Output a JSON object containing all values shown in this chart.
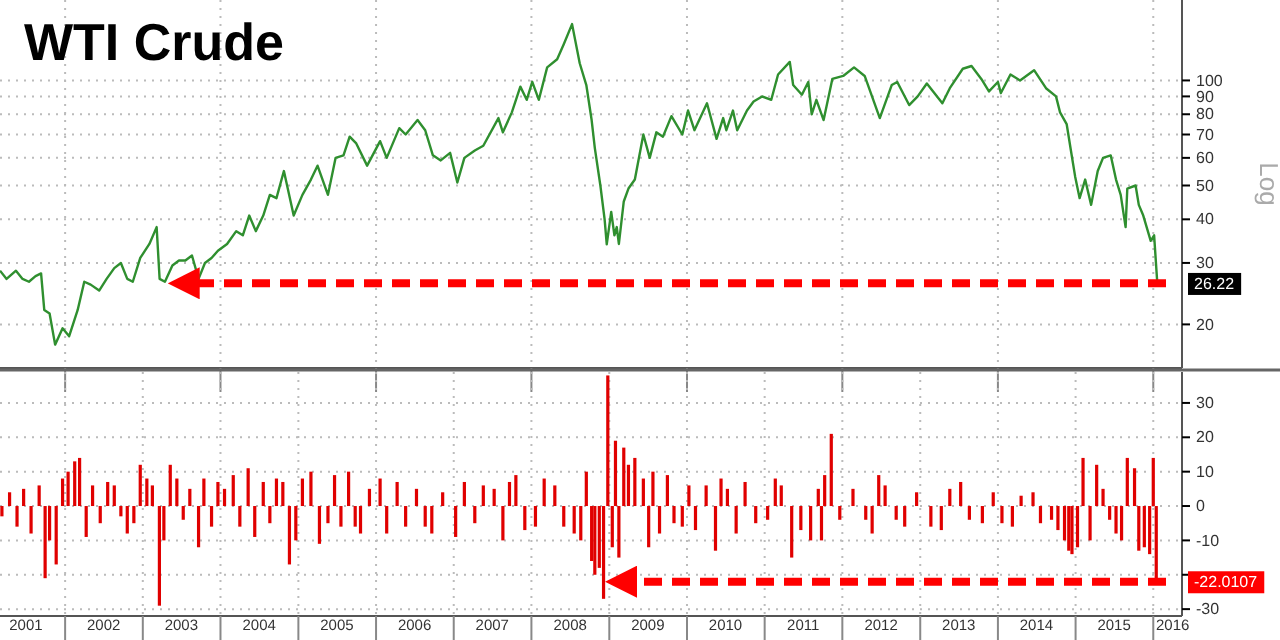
{
  "chart_data": [
    {
      "type": "line",
      "title": "WTI Crude",
      "ylabel": "Log",
      "log": true,
      "grid": true,
      "tick_labels": "y",
      "xlim": [
        "2001-03-01",
        "2016-05-15"
      ],
      "xticks": [
        {
          "value": "2002-01-01",
          "label": null
        },
        {
          "value": "2004-01-01",
          "label": null
        },
        {
          "value": "2006-01-01",
          "label": null
        },
        {
          "value": "2008-01-01",
          "label": null
        },
        {
          "value": "2010-01-01",
          "label": null
        },
        {
          "value": "2012-01-01",
          "label": null
        },
        {
          "value": "2014-01-01",
          "label": null
        },
        {
          "value": "2016-01-01",
          "label": null
        }
      ],
      "ylim": [
        15,
        170
      ],
      "yticks": [
        20,
        30,
        40,
        50,
        60,
        70,
        80,
        90,
        100
      ],
      "ref_lines": [
        {
          "axis": "y",
          "value": 26.22,
          "label": "26.22",
          "color": "#ff0000",
          "line_style": "dashed"
        }
      ],
      "series": [
        {
          "color": "#2f8f2f",
          "x": [
            "2001-03-01",
            "2001-04-01",
            "2001-05-15",
            "2001-06-15",
            "2001-07-15",
            "2001-08-15",
            "2001-09-10",
            "2001-09-25",
            "2001-10-20",
            "2001-11-15",
            "2001-12-20",
            "2002-01-20",
            "2002-03-01",
            "2002-04-01",
            "2002-05-01",
            "2002-06-10",
            "2002-07-15",
            "2002-08-20",
            "2002-09-20",
            "2002-10-20",
            "2002-11-15",
            "2002-12-20",
            "2003-02-01",
            "2003-03-07",
            "2003-03-21",
            "2003-04-15",
            "2003-05-20",
            "2003-06-20",
            "2003-07-20",
            "2003-08-20",
            "2003-09-20",
            "2003-10-20",
            "2003-11-20",
            "2003-12-20",
            "2004-02-01",
            "2004-03-15",
            "2004-04-15",
            "2004-05-15",
            "2004-06-15",
            "2004-07-20",
            "2004-08-20",
            "2004-09-20",
            "2004-10-25",
            "2004-12-10",
            "2005-01-20",
            "2005-03-01",
            "2005-04-01",
            "2005-05-20",
            "2005-06-25",
            "2005-08-01",
            "2005-08-30",
            "2005-09-30",
            "2005-11-20",
            "2006-01-20",
            "2006-02-20",
            "2006-04-20",
            "2006-05-20",
            "2006-07-15",
            "2006-08-20",
            "2006-09-25",
            "2006-11-01",
            "2006-12-15",
            "2007-01-18",
            "2007-02-20",
            "2007-04-10",
            "2007-05-20",
            "2007-07-30",
            "2007-08-20",
            "2007-10-01",
            "2007-11-10",
            "2007-12-10",
            "2008-01-05",
            "2008-02-05",
            "2008-03-15",
            "2008-05-01",
            "2008-06-01",
            "2008-07-10",
            "2008-08-15",
            "2008-09-15",
            "2008-10-10",
            "2008-10-25",
            "2008-11-20",
            "2008-12-10",
            "2008-12-20",
            "2009-01-10",
            "2009-01-25",
            "2009-02-05",
            "2009-02-15",
            "2009-03-10",
            "2009-04-01",
            "2009-05-01",
            "2009-06-10",
            "2009-07-10",
            "2009-08-10",
            "2009-09-10",
            "2009-10-20",
            "2009-12-10",
            "2010-01-06",
            "2010-02-05",
            "2010-04-05",
            "2010-05-20",
            "2010-06-20",
            "2010-07-05",
            "2010-08-05",
            "2010-08-25",
            "2010-10-10",
            "2010-11-10",
            "2010-12-20",
            "2011-02-01",
            "2011-03-05",
            "2011-04-29",
            "2011-05-15",
            "2011-06-25",
            "2011-07-25",
            "2011-08-10",
            "2011-09-01",
            "2011-10-05",
            "2011-11-15",
            "2012-01-05",
            "2012-02-25",
            "2012-04-15",
            "2012-06-25",
            "2012-08-20",
            "2012-09-15",
            "2012-11-10",
            "2012-12-20",
            "2013-02-01",
            "2013-04-15",
            "2013-05-20",
            "2013-07-20",
            "2013-08-30",
            "2013-10-15",
            "2013-11-20",
            "2014-01-01",
            "2014-01-15",
            "2014-03-01",
            "2014-04-15",
            "2014-06-20",
            "2014-08-15",
            "2014-10-01",
            "2014-10-20",
            "2014-11-20",
            "2014-12-10",
            "2014-12-30",
            "2015-01-20",
            "2015-02-15",
            "2015-03-15",
            "2015-04-15",
            "2015-05-10",
            "2015-06-15",
            "2015-07-10",
            "2015-08-01",
            "2015-08-24",
            "2015-09-01",
            "2015-10-10",
            "2015-10-25",
            "2015-11-15",
            "2015-12-20",
            "2016-01-05",
            "2016-01-20"
          ],
          "values": [
            28.5,
            27,
            28.5,
            27,
            26.5,
            27.5,
            28,
            22,
            21.5,
            17.5,
            19.5,
            18.5,
            22,
            26.5,
            26,
            25,
            27,
            29,
            30,
            27,
            26.5,
            31,
            34,
            38,
            27,
            26.5,
            29.5,
            30.5,
            30.5,
            31.5,
            27,
            30,
            31,
            32.5,
            34,
            37,
            36,
            41,
            37,
            41,
            47,
            46,
            55,
            41,
            47,
            52,
            57,
            47,
            60,
            61,
            69,
            66,
            57,
            67,
            60,
            73,
            70,
            77,
            72,
            61,
            59,
            62,
            51,
            60,
            63,
            65,
            78,
            71,
            81,
            96,
            88,
            99,
            88,
            109,
            115,
            127,
            145,
            112,
            97,
            77,
            64,
            50,
            40,
            33.9,
            42,
            36,
            38,
            34,
            45,
            49,
            52,
            70,
            60,
            71,
            69,
            79,
            70,
            82,
            72,
            86,
            68,
            78,
            72,
            82,
            72,
            82,
            87,
            90,
            88,
            104,
            113,
            97,
            91,
            99,
            80,
            88,
            77,
            101,
            103,
            109,
            103,
            78,
            97,
            99,
            85,
            90,
            98,
            86,
            95,
            108,
            110,
            101,
            93,
            99,
            92,
            104,
            100,
            107,
            95,
            90,
            81,
            75,
            63,
            53,
            46,
            52,
            44,
            55,
            60,
            61,
            52,
            47,
            38,
            49,
            50,
            44,
            41,
            34.7,
            36,
            26.22
          ]
        }
      ]
    },
    {
      "type": "bar",
      "grid": true,
      "xlim": [
        "2001-03-01",
        "2016-05-15"
      ],
      "xticks": [
        {
          "value": "2001-07-01",
          "label": "2001"
        },
        {
          "value": "2002-01-01",
          "label": null
        },
        {
          "value": "2002-07-01",
          "label": "2002"
        },
        {
          "value": "2003-01-01",
          "label": null
        },
        {
          "value": "2003-07-01",
          "label": "2003"
        },
        {
          "value": "2004-01-01",
          "label": null
        },
        {
          "value": "2004-07-01",
          "label": "2004"
        },
        {
          "value": "2005-01-01",
          "label": null
        },
        {
          "value": "2005-07-01",
          "label": "2005"
        },
        {
          "value": "2006-01-01",
          "label": null
        },
        {
          "value": "2006-07-01",
          "label": "2006"
        },
        {
          "value": "2007-01-01",
          "label": null
        },
        {
          "value": "2007-07-01",
          "label": "2007"
        },
        {
          "value": "2008-01-01",
          "label": null
        },
        {
          "value": "2008-07-01",
          "label": "2008"
        },
        {
          "value": "2009-01-01",
          "label": null
        },
        {
          "value": "2009-07-01",
          "label": "2009"
        },
        {
          "value": "2010-01-01",
          "label": null
        },
        {
          "value": "2010-07-01",
          "label": "2010"
        },
        {
          "value": "2011-01-01",
          "label": null
        },
        {
          "value": "2011-07-01",
          "label": "2011"
        },
        {
          "value": "2012-01-01",
          "label": null
        },
        {
          "value": "2012-07-01",
          "label": "2012"
        },
        {
          "value": "2013-01-01",
          "label": null
        },
        {
          "value": "2013-07-01",
          "label": "2013"
        },
        {
          "value": "2014-01-01",
          "label": null
        },
        {
          "value": "2014-07-01",
          "label": "2014"
        },
        {
          "value": "2015-01-01",
          "label": null
        },
        {
          "value": "2015-07-01",
          "label": "2015"
        },
        {
          "value": "2016-01-01",
          "label": null
        },
        {
          "value": "2016-04-01",
          "label": "2016"
        }
      ],
      "ylim": [
        -32,
        39
      ],
      "yticks": [
        -30,
        {
          "value": -20,
          "label": null
        },
        -10,
        0,
        10,
        20,
        30
      ],
      "ref_lines": [
        {
          "axis": "y",
          "value": -22.0107,
          "label": "-22.0107",
          "color": "#ff0000",
          "line_style": "dashed"
        }
      ],
      "series": [
        {
          "color": "#e00000",
          "x": [
            "2001-03-10",
            "2001-04-15",
            "2001-05-20",
            "2001-06-20",
            "2001-07-25",
            "2001-09-01",
            "2001-09-29",
            "2001-10-20",
            "2001-11-20",
            "2001-12-20",
            "2002-01-15",
            "2002-02-15",
            "2002-03-10",
            "2002-04-10",
            "2002-05-10",
            "2002-06-15",
            "2002-07-20",
            "2002-08-20",
            "2002-09-20",
            "2002-10-20",
            "2002-11-20",
            "2002-12-20",
            "2003-01-20",
            "2003-02-15",
            "2003-03-20",
            "2003-04-10",
            "2003-05-10",
            "2003-06-10",
            "2003-07-10",
            "2003-08-10",
            "2003-09-20",
            "2003-10-15",
            "2003-11-20",
            "2003-12-20",
            "2004-01-20",
            "2004-03-01",
            "2004-04-01",
            "2004-05-10",
            "2004-06-10",
            "2004-07-20",
            "2004-08-20",
            "2004-09-20",
            "2004-10-20",
            "2004-11-20",
            "2004-12-20",
            "2005-01-20",
            "2005-03-01",
            "2005-04-10",
            "2005-05-20",
            "2005-06-20",
            "2005-07-20",
            "2005-08-25",
            "2005-09-25",
            "2005-10-20",
            "2005-12-01",
            "2006-01-20",
            "2006-02-20",
            "2006-04-10",
            "2006-05-20",
            "2006-07-10",
            "2006-08-20",
            "2006-09-20",
            "2006-11-10",
            "2007-01-10",
            "2007-02-20",
            "2007-04-10",
            "2007-05-20",
            "2007-07-10",
            "2007-08-20",
            "2007-09-20",
            "2007-10-20",
            "2007-12-01",
            "2008-01-20",
            "2008-03-01",
            "2008-04-20",
            "2008-06-01",
            "2008-07-20",
            "2008-08-20",
            "2008-09-15",
            "2008-10-10",
            "2008-10-25",
            "2008-11-15",
            "2008-12-05",
            "2008-12-25",
            "2009-01-15",
            "2009-01-30",
            "2009-02-15",
            "2009-03-10",
            "2009-04-01",
            "2009-05-01",
            "2009-06-10",
            "2009-07-05",
            "2009-07-25",
            "2009-08-25",
            "2009-10-01",
            "2009-11-01",
            "2009-12-10",
            "2010-01-10",
            "2010-02-10",
            "2010-04-01",
            "2010-05-15",
            "2010-06-10",
            "2010-07-10",
            "2010-08-20",
            "2010-10-01",
            "2010-11-20",
            "2011-01-15",
            "2011-02-20",
            "2011-03-20",
            "2011-05-08",
            "2011-06-20",
            "2011-08-05",
            "2011-09-10",
            "2011-09-25",
            "2011-10-10",
            "2011-11-10",
            "2011-12-20",
            "2012-02-20",
            "2012-04-20",
            "2012-05-20",
            "2012-06-20",
            "2012-07-20",
            "2012-09-10",
            "2012-10-20",
            "2012-12-15",
            "2013-02-20",
            "2013-04-10",
            "2013-05-20",
            "2013-07-10",
            "2013-08-20",
            "2013-10-20",
            "2013-12-10",
            "2014-01-20",
            "2014-03-10",
            "2014-04-20",
            "2014-06-15",
            "2014-07-20",
            "2014-09-10",
            "2014-10-10",
            "2014-11-10",
            "2014-11-30",
            "2014-12-15",
            "2015-01-10",
            "2015-02-05",
            "2015-03-10",
            "2015-04-10",
            "2015-05-10",
            "2015-06-10",
            "2015-07-10",
            "2015-08-05",
            "2015-09-01",
            "2015-10-05",
            "2015-10-25",
            "2015-11-20",
            "2015-12-15",
            "2016-01-01",
            "2016-01-15"
          ],
          "values": [
            -3,
            4,
            -6,
            5,
            -8,
            6,
            -21,
            -10,
            -17,
            8,
            10,
            13,
            14,
            -9,
            6,
            -5,
            7,
            6,
            -3,
            -8,
            -5,
            12,
            8,
            6,
            -29,
            -10,
            12,
            8,
            -4,
            5,
            -12,
            8,
            -6,
            7,
            5,
            9,
            -6,
            11,
            -9,
            7,
            -5,
            8,
            7,
            -17,
            -10,
            8,
            10,
            -11,
            -5,
            9,
            -6,
            10,
            -6,
            -8,
            5,
            8,
            -8,
            7,
            -6,
            5,
            -6,
            -8,
            4,
            -9,
            7,
            -5,
            6,
            5,
            -10,
            7,
            9,
            -7,
            -6,
            8,
            6,
            -6,
            -8,
            -10,
            10,
            -16,
            -20,
            -18,
            -27,
            38,
            -12,
            19,
            -15,
            17,
            12,
            14,
            8,
            -12,
            10,
            -8,
            9,
            -5,
            -6,
            6,
            -7,
            6,
            -13,
            8,
            5,
            -8,
            7,
            -5,
            -4,
            8,
            6,
            -15,
            -7,
            -10,
            5,
            -10,
            9,
            21,
            -4,
            5,
            -4,
            -8,
            9,
            6,
            -4,
            -6,
            4,
            -6,
            -7,
            5,
            7,
            -4,
            -5,
            4,
            -5,
            -6,
            3,
            4,
            -5,
            -4,
            -7,
            -10,
            -13,
            -14,
            -12,
            14,
            -10,
            12,
            5,
            -4,
            -8,
            -10,
            14,
            11,
            -13,
            -12,
            -14,
            14,
            -22.0107
          ]
        }
      ]
    }
  ]
}
